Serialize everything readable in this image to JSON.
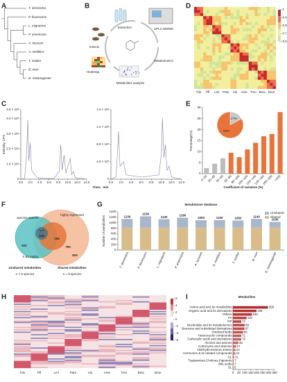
{
  "panel_labels": [
    "A",
    "B",
    "C",
    "D",
    "E",
    "F",
    "G",
    "H",
    "I"
  ],
  "tree": {
    "taxa": [
      "T. domestica",
      "P. flavescens",
      "L. migratoria",
      "P. americana",
      "A. lucorum",
      "A. mellifera",
      "T. molitor",
      "B. mori",
      "D. melanogaster"
    ]
  },
  "workflow": {
    "extraction": "Extraction",
    "instrument": "UPLC-MS/MS",
    "insects": "Insects",
    "metabolomics": "Metabolomics",
    "heatmap": "Heatmap",
    "analysis": "Metabolites analysis"
  },
  "correlation_heatmap": {
    "x_labels": [
      "Tdo",
      "Pfl",
      "Lmi",
      "Pam",
      "Alu",
      "Ame",
      "Tmo",
      "Bmo",
      "Dme"
    ],
    "colorbar_ticks": [
      1,
      0.9,
      0.8,
      0.7,
      0.6
    ]
  },
  "venn": {
    "species_specific": "species-specific",
    "highly_expressed": "highly expressed",
    "n1": "n=1",
    "count_specific": "115",
    "count_high": "194",
    "count_unshared": "622",
    "count_shared_inner": "750",
    "count_shared": "820",
    "matrix": "0 &1 matrix",
    "unshared_title": "Unshared metabolites",
    "unshared_n": "n < 9  species",
    "shared_title": "Shared metabolites",
    "shared_n": "n = 9 species"
  },
  "clustered_heatmap": {
    "x_labels": [
      "Tdo",
      "Pfl",
      "Lmi",
      "Pam",
      "Alu",
      "Ame",
      "Tmo",
      "Bmo",
      "Dme"
    ],
    "colorbar_ticks": [
      6,
      4,
      2,
      0,
      -2,
      -4,
      -6
    ]
  },
  "chart_data": [
    {
      "type": "line",
      "y_label": "Intensity, CPS",
      "x_label": "Time、min",
      "color": "#8b79a8",
      "x": [
        0,
        0.8,
        1.2,
        1.5,
        1.7,
        2.0,
        2.3,
        3.0,
        3.5,
        5,
        7,
        8.2,
        8.5,
        8.8,
        9.2,
        9.6,
        10.5,
        10.8,
        11.2,
        11.6,
        13,
        14
      ],
      "values": [
        0,
        50000,
        1500000,
        3900000,
        1200000,
        2400000,
        600000,
        300000,
        100000,
        50000,
        50000,
        500000,
        2300000,
        600000,
        1600000,
        400000,
        1400000,
        300000,
        500000,
        100000,
        50000,
        0
      ],
      "xlim": [
        0,
        14
      ],
      "ylim": [
        0,
        4600000
      ],
      "xticks": [
        {
          "value": 0,
          "label": "0.0"
        },
        {
          "value": 2,
          "label": "2.0"
        },
        {
          "value": 4,
          "label": "4.0"
        },
        {
          "value": 6,
          "label": "6.0"
        },
        {
          "value": 8,
          "label": "8.0"
        },
        {
          "value": 10,
          "label": "10.0"
        },
        {
          "value": 12,
          "label": "12.0"
        },
        {
          "value": 14,
          "label": "14.0"
        }
      ],
      "yticks": [
        0,
        {
          "value": 1000000,
          "label": "1.0 × 10⁶"
        },
        {
          "value": 2000000,
          "label": "2.0 × 10⁶"
        },
        {
          "value": 3000000,
          "label": "3.0 × 10⁶"
        },
        {
          "value": 4000000,
          "label": "4.0 × 10⁶"
        },
        {
          "value": 4600000,
          "label": "4.6 × 10⁶"
        }
      ]
    },
    {
      "type": "line",
      "color": "#8b79a8",
      "x": [
        0,
        1.0,
        1.3,
        1.5,
        1.8,
        2.5,
        3,
        6,
        9.5,
        10.0,
        10.2,
        10.5,
        10.8,
        11.1,
        11.5,
        12,
        14
      ],
      "values": [
        0,
        50000,
        600000,
        1100000,
        300000,
        400000,
        100000,
        50000,
        100000,
        600000,
        1400000,
        500000,
        800000,
        200000,
        300000,
        50000,
        0
      ],
      "xlim": [
        0,
        14
      ],
      "ylim": [
        0,
        1600000
      ],
      "xticks": [
        {
          "value": 0,
          "label": "0.0"
        },
        {
          "value": 2,
          "label": "2.0"
        },
        {
          "value": 4,
          "label": "4.0"
        },
        {
          "value": 6,
          "label": "6.0"
        },
        {
          "value": 8,
          "label": "8.0"
        },
        {
          "value": 10,
          "label": "10.0"
        },
        {
          "value": 12,
          "label": "12.0"
        },
        {
          "value": 14,
          "label": "14.0"
        }
      ],
      "yticks": [
        0,
        {
          "value": 400000,
          "label": "4.0 × 10⁵"
        },
        {
          "value": 800000,
          "label": "8.0 × 10⁵"
        },
        {
          "value": 1200000,
          "label": "1.2 × 10⁶"
        },
        {
          "value": 1600000,
          "label": "1.6 × 10⁶"
        }
      ]
    },
    {
      "type": "bar",
      "y_label": "Percentage(%)",
      "x_label": "Coefficient of variation (%)",
      "categories": [
        "0~20",
        "20~40",
        "40~60",
        "60~80",
        "80~100",
        "100~120",
        "120~140",
        "140~160",
        "160~200",
        ">200"
      ],
      "values": [
        2.5,
        4.5,
        7,
        9.5,
        7.5,
        11,
        14,
        17,
        18,
        28
      ],
      "colors": [
        "#bdbdbd",
        "#bdbdbd",
        "#bdbdbd",
        "#e8743b",
        "#e8743b",
        "#e8743b",
        "#e8743b",
        "#e8743b",
        "#e8743b",
        "#e8743b"
      ],
      "ylim": [
        0,
        30
      ],
      "yticks": [
        0,
        5,
        10,
        15,
        20,
        25,
        30
      ]
    },
    {
      "type": "pie",
      "values": [
        17,
        83
      ],
      "value_labels": [
        "17%",
        "83%"
      ],
      "colors": [
        "#c8c8c8",
        "#e8743b"
      ]
    },
    {
      "type": "stacked_bar",
      "title": "Metabolome database",
      "y_label": "Number of metabolites",
      "legend": "top-right",
      "categories": [
        "T. domestica",
        "P. flavescens",
        "L. migratoria",
        "P. americana",
        "A. lucorum",
        "A. mellifera",
        "T. molitor",
        "B. mori",
        "D. melanogaster"
      ],
      "series": [
        {
          "name": "Unshared",
          "color": "#a9b6cc",
          "values": [
            319,
            416,
            310,
            366,
            273,
            280,
            263,
            320,
            210
          ]
        },
        {
          "name": "Shared",
          "color": "#d8bd8a",
          "values": [
            820,
            820,
            820,
            820,
            820,
            820,
            820,
            820,
            820
          ]
        }
      ],
      "totals": [
        1139,
        1236,
        1130,
        1186,
        1093,
        1100,
        1083,
        1140,
        1030
      ],
      "ylim": [
        0,
        1400
      ],
      "yticks": [
        0,
        200,
        400,
        600,
        800,
        1000,
        1200,
        1400
      ]
    },
    {
      "type": "barh",
      "title": "Metabolites",
      "color": "#b22a2a",
      "categories": [
        "Amino acid and its metabolites",
        "Organic acid and its derivatives",
        "Others",
        "FA",
        "GP",
        "Nucleotide and its metabolomics",
        "Benzene and substituted derivatives",
        "Oxidized lipids",
        "Heterocyclic compounds",
        "Carboxylic acids and derivatives",
        "Alcohol and amines",
        "CoEnzyme and vitamins",
        "Aldehyde,Ketones,Esters",
        "Hormones & its related compounds",
        "GL",
        "Tryptamines,Cholines,Pigments",
        "Bile acids",
        "SL"
      ],
      "values": [
        295,
        198,
        160,
        115,
        71,
        99,
        97,
        86,
        71,
        70,
        46,
        27,
        22,
        21,
        11,
        7,
        7,
        5
      ],
      "xlim": [
        0,
        350
      ],
      "xticks": [
        0,
        50,
        100,
        150,
        200,
        250,
        300,
        350
      ]
    }
  ]
}
